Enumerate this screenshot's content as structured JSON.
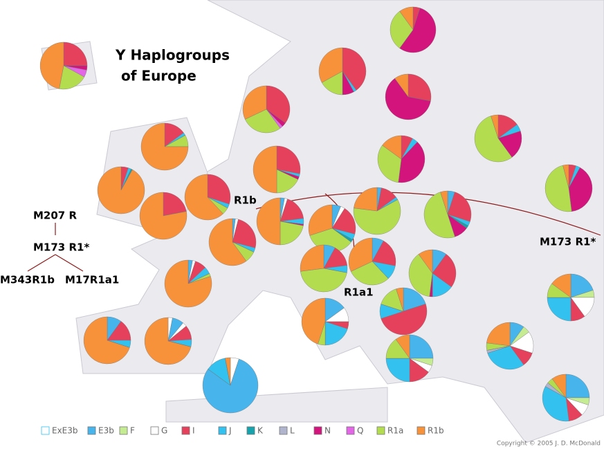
{
  "title": [
    "Y Haplogroups",
    "of Europe"
  ],
  "annotations": [
    "R1b",
    "M207 R",
    "M173 R1*",
    "M343R1b",
    "M17R1a1",
    "R1a1",
    "M173 R1*"
  ],
  "legend": [
    {
      "label": "ExE3b",
      "color": "#ffffff"
    },
    {
      "label": "E3b",
      "color": "#47b4ec"
    },
    {
      "label": "F",
      "color": "#c5ec92"
    },
    {
      "label": "G",
      "color": "#ffffff"
    },
    {
      "label": "I",
      "color": "#e6415c"
    },
    {
      "label": "J",
      "color": "#33c2f0"
    },
    {
      "label": "K",
      "color": "#17a3ad"
    },
    {
      "label": "L",
      "color": "#b0b4cc"
    },
    {
      "label": "N",
      "color": "#d3147c"
    },
    {
      "label": "Q",
      "color": "#e266e6"
    },
    {
      "label": "R1a",
      "color": "#b3dd4e"
    },
    {
      "label": "R1b",
      "color": "#f7923a"
    }
  ],
  "copyright": "Copyright © 2005  J. D. McDonald",
  "pies": [
    [
      0,
      0,
      0,
      0,
      25,
      0,
      0,
      0,
      3,
      5,
      20,
      47
    ],
    [
      0,
      0,
      0,
      0,
      35,
      0,
      0,
      0,
      3,
      2,
      28,
      32
    ],
    [
      0,
      0,
      0,
      0,
      40,
      2,
      0,
      0,
      8,
      0,
      17,
      33
    ],
    [
      0,
      0,
      0,
      0,
      5,
      0,
      0,
      0,
      55,
      0,
      30,
      10
    ],
    [
      0,
      0,
      0,
      0,
      28,
      0,
      0,
      0,
      62,
      0,
      0,
      10
    ],
    [
      0,
      0,
      0,
      0,
      15,
      5,
      0,
      0,
      20,
      0,
      55,
      5
    ],
    [
      0,
      0,
      0,
      0,
      15,
      2,
      0,
      0,
      0,
      0,
      8,
      75
    ],
    [
      0,
      0,
      0,
      0,
      5,
      2,
      1,
      0,
      0,
      0,
      0,
      92
    ],
    [
      0,
      0,
      0,
      0,
      22,
      0,
      0,
      0,
      0,
      0,
      0,
      78
    ],
    [
      0,
      0,
      0,
      0,
      30,
      3,
      0,
      0,
      0,
      0,
      5,
      62
    ],
    [
      0,
      0,
      0,
      0,
      28,
      2,
      0,
      0,
      2,
      0,
      18,
      50
    ],
    [
      0,
      0,
      0,
      0,
      8,
      4,
      0,
      0,
      40,
      0,
      33,
      15
    ],
    [
      0,
      0,
      0,
      0,
      5,
      3,
      0,
      0,
      40,
      0,
      48,
      4
    ],
    [
      0,
      2,
      0,
      2,
      25,
      3,
      0,
      0,
      0,
      0,
      8,
      60
    ],
    [
      0,
      3,
      0,
      2,
      18,
      4,
      0,
      0,
      1,
      0,
      22,
      50
    ],
    [
      0,
      3,
      0,
      0,
      12,
      2,
      0,
      0,
      0,
      0,
      60,
      23
    ],
    [
      0,
      5,
      0,
      0,
      25,
      3,
      2,
      0,
      10,
      0,
      50,
      5
    ],
    [
      0,
      6,
      0,
      3,
      20,
      4,
      2,
      0,
      0,
      0,
      35,
      30
    ],
    [
      0,
      3,
      0,
      2,
      8,
      5,
      0,
      0,
      0,
      0,
      2,
      80
    ],
    [
      0,
      8,
      0,
      0,
      15,
      5,
      0,
      0,
      0,
      0,
      45,
      27
    ],
    [
      0,
      8,
      0,
      0,
      20,
      10,
      0,
      0,
      0,
      0,
      30,
      32
    ],
    [
      0,
      10,
      0,
      0,
      25,
      15,
      0,
      0,
      2,
      0,
      38,
      10
    ],
    [
      0,
      10,
      0,
      0,
      15,
      5,
      0,
      0,
      0,
      0,
      0,
      70
    ],
    [
      3,
      8,
      0,
      3,
      10,
      5,
      0,
      0,
      0,
      0,
      0,
      71
    ],
    [
      0,
      15,
      0,
      10,
      5,
      20,
      0,
      0,
      0,
      0,
      5,
      45
    ],
    [
      0,
      20,
      0,
      0,
      50,
      10,
      0,
      0,
      0,
      0,
      15,
      5
    ],
    [
      0,
      20,
      5,
      15,
      10,
      25,
      0,
      0,
      0,
      0,
      10,
      15
    ],
    [
      0,
      25,
      5,
      5,
      15,
      25,
      0,
      0,
      0,
      0,
      15,
      10
    ],
    [
      0,
      10,
      5,
      15,
      10,
      30,
      0,
      2,
      0,
      0,
      5,
      23
    ],
    [
      0,
      30,
      0,
      5,
      0,
      30,
      0,
      0,
      0,
      0,
      5,
      30
    ],
    [
      5,
      80,
      0,
      0,
      0,
      12,
      0,
      0,
      0,
      0,
      0,
      3
    ],
    [
      0,
      25,
      5,
      8,
      10,
      35,
      0,
      3,
      0,
      0,
      4,
      10
    ]
  ]
}
